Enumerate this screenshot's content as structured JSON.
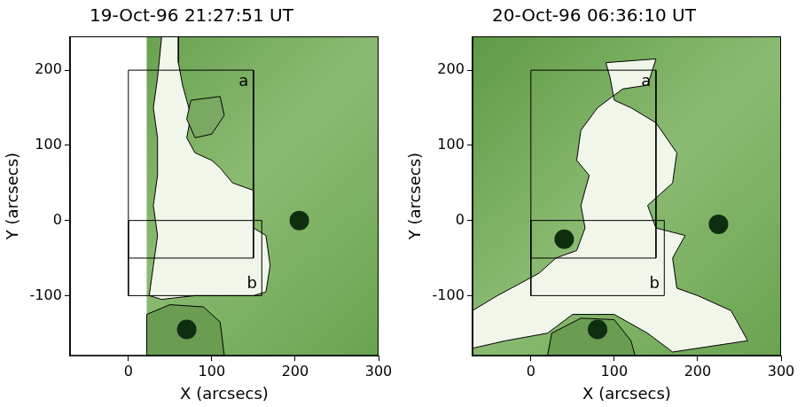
{
  "chart_data": [
    {
      "type": "scatter",
      "title": "19-Oct-96 21:27:51 UT",
      "x_label": "X (arcsecs)",
      "y_label": "Y (arcsecs)",
      "xlim": [
        -70,
        300
      ],
      "ylim": [
        -180,
        245
      ],
      "xticks": [
        0,
        100,
        200,
        300
      ],
      "yticks": [
        -100,
        0,
        100,
        200
      ],
      "grid": false,
      "tick_labels": true,
      "series": [
        {
          "type": "blank",
          "color": "#ffffff",
          "x": [
            -70,
            22,
            22,
            -70,
            -70
          ],
          "y": [
            -180,
            -180,
            245,
            245,
            -180
          ]
        },
        {
          "type": "contour",
          "color": "#f1f6ea",
          "x": [
            40,
            60,
            60,
            65,
            75,
            70,
            80,
            100,
            110,
            125,
            150,
            150,
            150,
            165,
            170,
            165,
            150,
            110,
            80,
            40,
            25,
            30,
            35,
            30,
            35,
            35,
            30,
            35,
            40
          ],
          "y": [
            245,
            245,
            210,
            180,
            140,
            110,
            90,
            80,
            70,
            50,
            40,
            10,
            -10,
            -20,
            -60,
            -95,
            -100,
            -100,
            -100,
            -105,
            -100,
            -60,
            -20,
            20,
            60,
            110,
            150,
            190,
            245
          ]
        },
        {
          "type": "hole",
          "color": "#7aaa62",
          "x": [
            75,
            110,
            115,
            100,
            80,
            70,
            75
          ],
          "y": [
            160,
            165,
            140,
            115,
            110,
            135,
            160
          ]
        },
        {
          "type": "hole",
          "color": "#6a9c52",
          "x": [
            22,
            22,
            50,
            90,
            110,
            115,
            22
          ],
          "y": [
            -180,
            -125,
            -112,
            -115,
            -135,
            -180,
            -180
          ]
        },
        {
          "type": "spot",
          "marker": "circle",
          "color": "#0f2e0f",
          "x": [
            70,
            205
          ],
          "y": [
            -145,
            0
          ]
        },
        {
          "type": "box",
          "label": "a",
          "color": "#000000",
          "x": [
            150,
            150,
            0,
            0,
            150
          ],
          "y": [
            200,
            -50,
            -50,
            200,
            200
          ]
        },
        {
          "type": "box",
          "label": "b",
          "color": "#000000",
          "x": [
            160,
            160,
            0,
            0,
            160
          ],
          "y": [
            -100,
            0,
            0,
            -100,
            -100
          ]
        }
      ]
    },
    {
      "type": "scatter",
      "title": "20-Oct-96 06:36:10 UT",
      "x_label": "X (arcsecs)",
      "y_label": "Y (arcsecs)",
      "xlim": [
        -70,
        300
      ],
      "ylim": [
        -180,
        245
      ],
      "xticks": [
        0,
        100,
        200,
        300
      ],
      "yticks": [
        -100,
        0,
        100,
        200
      ],
      "grid": false,
      "tick_labels": true,
      "series": [
        {
          "type": "contour",
          "color": "#f1f6ea",
          "x": [
            90,
            150,
            140,
            110,
            80,
            60,
            55,
            70,
            60,
            65,
            55,
            30,
            10,
            -40,
            -70,
            -70,
            -30,
            20,
            50,
            100,
            140,
            170,
            260,
            240,
            200,
            175,
            170,
            185,
            150,
            140,
            170,
            175,
            150,
            120,
            100,
            95,
            90
          ],
          "y": [
            210,
            215,
            180,
            175,
            150,
            120,
            80,
            60,
            20,
            -10,
            -40,
            -50,
            -70,
            -100,
            -120,
            -170,
            -160,
            -150,
            -125,
            -125,
            -150,
            -175,
            -160,
            -120,
            -100,
            -90,
            -50,
            -20,
            -10,
            20,
            50,
            90,
            130,
            150,
            160,
            190,
            210
          ]
        },
        {
          "type": "hole",
          "color": "#6a9c52",
          "x": [
            20,
            25,
            60,
            100,
            120,
            125,
            20
          ],
          "y": [
            -180,
            -150,
            -130,
            -132,
            -160,
            -180,
            -180
          ]
        },
        {
          "type": "spot",
          "marker": "circle",
          "color": "#0f2e0f",
          "x": [
            80,
            225,
            40
          ],
          "y": [
            -145,
            -5,
            -25
          ]
        },
        {
          "type": "box",
          "label": "a",
          "color": "#000000",
          "x": [
            150,
            150,
            0,
            0,
            150
          ],
          "y": [
            200,
            -50,
            -50,
            200,
            200
          ]
        },
        {
          "type": "box",
          "label": "b",
          "color": "#000000",
          "x": [
            160,
            160,
            0,
            0,
            160
          ],
          "y": [
            -100,
            0,
            0,
            -100,
            -100
          ]
        }
      ]
    }
  ]
}
